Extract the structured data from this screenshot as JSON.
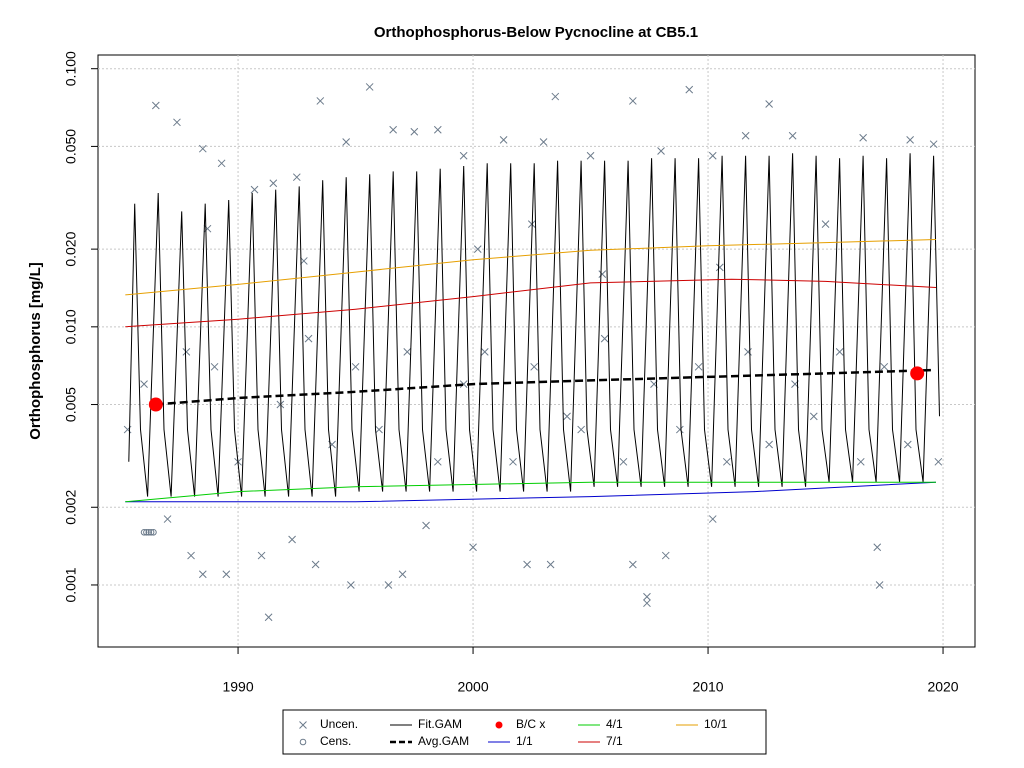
{
  "chart_data": {
    "type": "line",
    "title": "Orthophosphorus-Below Pycnocline at CB5.1",
    "y_label": "Orthophosphorus [mg/L]",
    "log_y": true,
    "grid": true,
    "xlim": [
      1984.04,
      2021.36
    ],
    "xticks": [
      1990,
      2000,
      2010,
      2020
    ],
    "ylim": [
      0.000575,
      0.113
    ],
    "yticks": [
      0.001,
      {
        "value": 0.002,
        "label": "0.002"
      },
      {
        "value": 0.005,
        "label": "0.005"
      },
      {
        "value": 0.01,
        "label": "0.010"
      },
      {
        "value": 0.02,
        "label": "0.020"
      },
      {
        "value": 0.05,
        "label": "0.050"
      },
      {
        "value": 0.1,
        "label": "0.100"
      }
    ],
    "legend": "bottom",
    "series": [
      {
        "name": "Uncen.",
        "type": "scatter",
        "symbol": "x",
        "color": "#6c7b8b",
        "x": [
          1986.5,
          1987.4,
          1988.5,
          1989.3,
          1990.7,
          1991.5,
          1992.5,
          1993.5,
          1994.6,
          1995.6,
          1996.6,
          1997.5,
          1998.5,
          1999.6,
          2001.3,
          2003.5,
          2003,
          2005,
          2006.8,
          2008,
          2009.2,
          2010.2,
          2011.6,
          2012.6,
          2013.6,
          2016.6,
          2018.6,
          2019.6,
          1987,
          1988,
          1988.5,
          1989.5,
          1991,
          1991.3,
          1992.3,
          1993.3,
          1994.8,
          1996.4,
          1997,
          1998,
          2000,
          2002.3,
          2003.3,
          2006.8,
          2007.4,
          2007.4,
          2008.2,
          2010.2,
          2017.2,
          2017.3,
          1985.3,
          1986,
          1987.8,
          1989,
          1990,
          1991.8,
          1993,
          1994,
          1995,
          1996,
          1997.2,
          1998.5,
          1999.6,
          2000.5,
          2001.7,
          2002.6,
          2004,
          2004.6,
          2005.6,
          2006.4,
          2007.7,
          2008.8,
          2009.6,
          2010.8,
          2011.7,
          2012.6,
          2013.7,
          2014.5,
          2015.6,
          2016.5,
          2017.5,
          2018.5,
          2019.8,
          2000.2,
          2002.5,
          2005.5,
          2010.5,
          2015,
          1992.8,
          1988.7
        ],
        "values": [
          0.072,
          0.062,
          0.049,
          0.043,
          0.034,
          0.036,
          0.038,
          0.075,
          0.052,
          0.085,
          0.058,
          0.057,
          0.058,
          0.046,
          0.053,
          0.078,
          0.052,
          0.046,
          0.075,
          0.048,
          0.083,
          0.046,
          0.055,
          0.073,
          0.055,
          0.054,
          0.053,
          0.051,
          0.0018,
          0.0013,
          0.0011,
          0.0011,
          0.0013,
          0.00075,
          0.0015,
          0.0012,
          0.001,
          0.001,
          0.0011,
          0.0017,
          0.0014,
          0.0012,
          0.0012,
          0.0012,
          0.0009,
          0.00085,
          0.0013,
          0.0018,
          0.0014,
          0.001,
          0.004,
          0.006,
          0.008,
          0.007,
          0.003,
          0.005,
          0.009,
          0.0035,
          0.007,
          0.004,
          0.008,
          0.003,
          0.006,
          0.008,
          0.003,
          0.007,
          0.0045,
          0.004,
          0.009,
          0.003,
          0.006,
          0.004,
          0.007,
          0.003,
          0.008,
          0.0035,
          0.006,
          0.0045,
          0.008,
          0.003,
          0.007,
          0.0035,
          0.003,
          0.02,
          0.025,
          0.016,
          0.017,
          0.025,
          0.018,
          0.024
        ]
      },
      {
        "name": "Cens.",
        "type": "scatter",
        "symbol": "o",
        "color": "#6c7b8b",
        "x": [
          1986.0,
          1986.1,
          1986.2,
          1986.3,
          1986.4
        ],
        "values": [
          0.0016,
          0.0016,
          0.0016,
          0.0016,
          0.0016
        ]
      },
      {
        "name": "Fit.GAM",
        "type": "line",
        "color": "#000000",
        "width": 1,
        "x": [
          1985.35,
          1985.6,
          1985.85,
          1986.15,
          1986.6,
          1986.85,
          1987.15,
          1987.6,
          1987.85,
          1988.15,
          1988.6,
          1988.85,
          1989.15,
          1989.6,
          1989.85,
          1990.15,
          1990.6,
          1990.85,
          1991.15,
          1991.6,
          1991.85,
          1992.15,
          1992.6,
          1992.85,
          1993.15,
          1993.6,
          1993.85,
          1994.15,
          1994.6,
          1994.85,
          1995.15,
          1995.6,
          1995.85,
          1996.15,
          1996.6,
          1996.85,
          1997.15,
          1997.6,
          1997.85,
          1998.15,
          1998.6,
          1998.85,
          1999.15,
          1999.6,
          1999.85,
          2000.15,
          2000.6,
          2000.85,
          2001.15,
          2001.6,
          2001.85,
          2002.15,
          2002.6,
          2002.85,
          2003.15,
          2003.6,
          2003.85,
          2004.15,
          2004.6,
          2004.85,
          2005.15,
          2005.6,
          2005.85,
          2006.15,
          2006.6,
          2006.85,
          2007.15,
          2007.6,
          2007.85,
          2008.15,
          2008.6,
          2008.85,
          2009.15,
          2009.6,
          2009.85,
          2010.15,
          2010.6,
          2010.85,
          2011.15,
          2011.6,
          2011.85,
          2012.15,
          2012.6,
          2012.85,
          2013.15,
          2013.6,
          2013.85,
          2014.15,
          2014.6,
          2014.85,
          2015.15,
          2015.6,
          2015.85,
          2016.15,
          2016.6,
          2016.85,
          2017.15,
          2017.6,
          2017.85,
          2018.15,
          2018.6,
          2018.85,
          2019.15,
          2019.6,
          2019.85
        ],
        "values": [
          0.003,
          0.03,
          0.004,
          0.0022,
          0.033,
          0.004,
          0.0022,
          0.028,
          0.004,
          0.0022,
          0.03,
          0.004,
          0.0022,
          0.031,
          0.004,
          0.0022,
          0.033,
          0.004,
          0.0022,
          0.034,
          0.004,
          0.0022,
          0.035,
          0.004,
          0.0022,
          0.037,
          0.004,
          0.0022,
          0.038,
          0.004,
          0.0023,
          0.039,
          0.004,
          0.0023,
          0.04,
          0.004,
          0.0023,
          0.04,
          0.004,
          0.0023,
          0.041,
          0.004,
          0.0023,
          0.042,
          0.004,
          0.0023,
          0.043,
          0.004,
          0.0023,
          0.043,
          0.004,
          0.0023,
          0.043,
          0.004,
          0.0023,
          0.044,
          0.004,
          0.0023,
          0.044,
          0.004,
          0.0024,
          0.044,
          0.004,
          0.0024,
          0.044,
          0.004,
          0.0024,
          0.045,
          0.004,
          0.0024,
          0.045,
          0.004,
          0.0024,
          0.045,
          0.004,
          0.0024,
          0.046,
          0.004,
          0.0024,
          0.046,
          0.004,
          0.0024,
          0.046,
          0.004,
          0.0024,
          0.047,
          0.004,
          0.0024,
          0.046,
          0.004,
          0.0025,
          0.045,
          0.004,
          0.0025,
          0.046,
          0.004,
          0.0025,
          0.045,
          0.004,
          0.0025,
          0.047,
          0.004,
          0.0025,
          0.046,
          0.0045
        ]
      },
      {
        "name": "Avg.GAM",
        "type": "line",
        "color": "#000000",
        "width": 2.5,
        "dash": true,
        "x": [
          1986.5,
          1990,
          1995,
          2000,
          2005,
          2010,
          2015,
          2019.6
        ],
        "values": [
          0.005,
          0.0053,
          0.0056,
          0.006,
          0.0062,
          0.0064,
          0.0066,
          0.0068
        ]
      },
      {
        "name": "B/C x",
        "type": "scatter",
        "symbol": "dot",
        "color": "#ff0000",
        "x": [
          1986.5,
          2018.9
        ],
        "values": [
          0.005,
          0.0066
        ]
      },
      {
        "name": "1/1",
        "type": "line",
        "color": "#0000cd",
        "width": 1,
        "x": [
          1985.2,
          1995,
          2005,
          2012,
          2019.7
        ],
        "values": [
          0.0021,
          0.0021,
          0.0022,
          0.0023,
          0.0025
        ]
      },
      {
        "name": "4/1",
        "type": "line",
        "color": "#00cd00",
        "width": 1,
        "x": [
          1985.2,
          1990,
          1995,
          2005,
          2012,
          2019.7
        ],
        "values": [
          0.0021,
          0.0023,
          0.0024,
          0.0025,
          0.0025,
          0.0025
        ]
      },
      {
        "name": "7/1",
        "type": "line",
        "color": "#cd0000",
        "width": 1,
        "x": [
          1985.2,
          1990,
          1995,
          2000,
          2005,
          2011,
          2015,
          2019.7
        ],
        "values": [
          0.01,
          0.0107,
          0.0117,
          0.0131,
          0.0148,
          0.0153,
          0.015,
          0.0142
        ]
      },
      {
        "name": "10/1",
        "type": "line",
        "color": "#e69f00",
        "width": 1,
        "x": [
          1985.2,
          1990,
          1995,
          2000,
          2005,
          2010,
          2015,
          2019.7
        ],
        "values": [
          0.0133,
          0.0146,
          0.0163,
          0.0182,
          0.0198,
          0.0206,
          0.0212,
          0.0218
        ]
      }
    ]
  }
}
